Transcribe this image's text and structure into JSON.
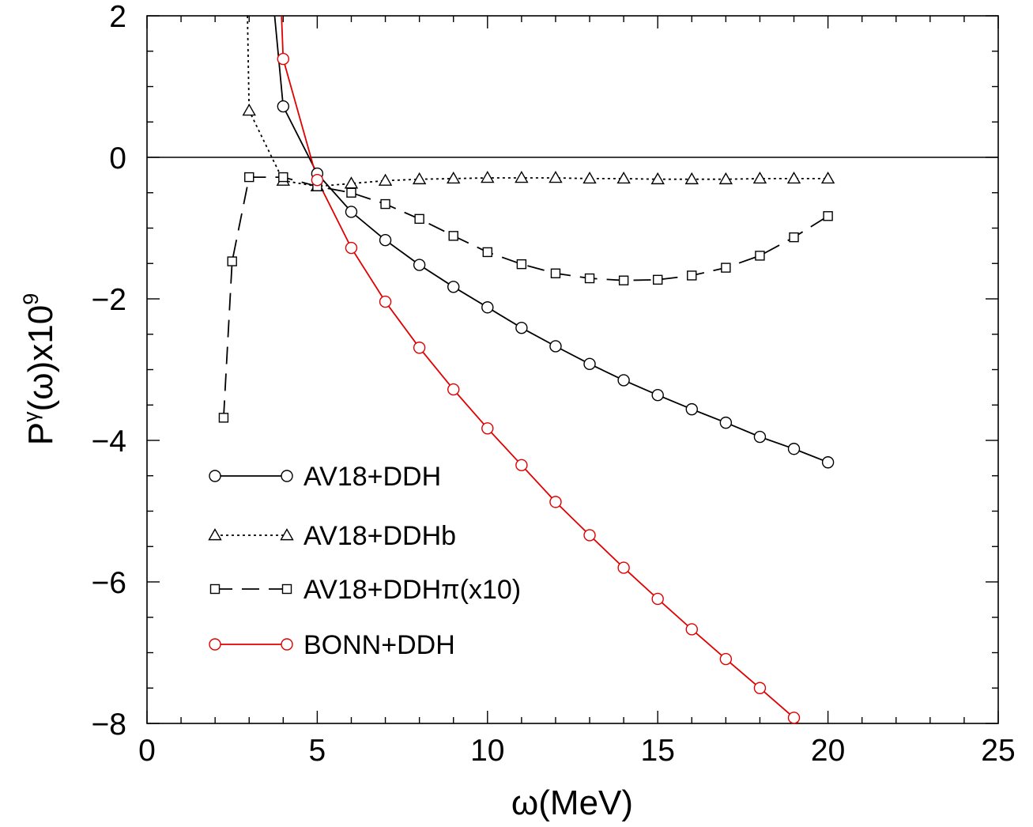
{
  "chart_data": {
    "type": "line",
    "xlabel": "ω(MeV)",
    "ylabel": {
      "base": "P",
      "sup": "γ",
      "rest": "(ω)x10",
      "exp": "9"
    },
    "xlim": [
      0,
      25
    ],
    "ylim": [
      -8,
      2
    ],
    "xticks": [
      0,
      5,
      10,
      15,
      20,
      25
    ],
    "yticks": [
      -8,
      -6,
      -4,
      -2,
      0,
      2
    ],
    "xtick_labels": [
      "0",
      "5",
      "10",
      "15",
      "20",
      "25"
    ],
    "ytick_labels": [
      "−8",
      "−6",
      "−4",
      "−2",
      "0",
      "2"
    ],
    "zero_line": true,
    "grid": false,
    "legend_placement": "lower-left",
    "series": [
      {
        "name": "AV18+DDH",
        "color": "#000000",
        "dash": "solid",
        "marker": "circle",
        "curve_x": [
          3.75,
          4,
          5,
          6,
          7,
          8,
          9,
          10,
          11,
          12,
          13,
          14,
          15,
          16,
          17,
          18,
          19,
          20
        ],
        "curve_y": [
          2.0,
          0.72,
          -0.23,
          -0.77,
          -1.17,
          -1.52,
          -1.83,
          -2.12,
          -2.41,
          -2.67,
          -2.92,
          -3.15,
          -3.36,
          -3.56,
          -3.75,
          -3.95,
          -4.12,
          -4.31
        ],
        "x": [
          4,
          5,
          6,
          7,
          8,
          9,
          10,
          11,
          12,
          13,
          14,
          15,
          16,
          17,
          18,
          19,
          20
        ],
        "y": [
          0.72,
          -0.23,
          -0.77,
          -1.17,
          -1.52,
          -1.83,
          -2.12,
          -2.41,
          -2.67,
          -2.92,
          -3.15,
          -3.36,
          -3.56,
          -3.75,
          -3.95,
          -4.12,
          -4.31
        ]
      },
      {
        "name": "AV18+DDHb",
        "color": "#000000",
        "dash": "dotted",
        "marker": "triangle",
        "curve_x": [
          2.95,
          3,
          4,
          5,
          6,
          7,
          8,
          9,
          10,
          11,
          12,
          13,
          14,
          15,
          16,
          17,
          18,
          19,
          20
        ],
        "curve_y": [
          2.0,
          0.66,
          -0.33,
          -0.41,
          -0.37,
          -0.33,
          -0.31,
          -0.3,
          -0.29,
          -0.29,
          -0.29,
          -0.3,
          -0.3,
          -0.31,
          -0.31,
          -0.31,
          -0.3,
          -0.3,
          -0.3
        ],
        "x": [
          3,
          4,
          5,
          6,
          7,
          8,
          9,
          10,
          11,
          12,
          13,
          14,
          15,
          16,
          17,
          18,
          19,
          20
        ],
        "y": [
          0.66,
          -0.33,
          -0.41,
          -0.37,
          -0.33,
          -0.31,
          -0.3,
          -0.29,
          -0.29,
          -0.29,
          -0.3,
          -0.3,
          -0.31,
          -0.31,
          -0.31,
          -0.3,
          -0.3,
          -0.3
        ]
      },
      {
        "name": "AV18+DDHπ(x10)",
        "color": "#000000",
        "dash": "dashed",
        "marker": "square",
        "curve_x": [
          2.25,
          2.5,
          3,
          4,
          5,
          6,
          7,
          8,
          9,
          10,
          11,
          12,
          13,
          14,
          15,
          16,
          17,
          18,
          19,
          20
        ],
        "curve_y": [
          -3.68,
          -1.47,
          -0.28,
          -0.28,
          -0.41,
          -0.5,
          -0.66,
          -0.87,
          -1.11,
          -1.34,
          -1.51,
          -1.64,
          -1.71,
          -1.74,
          -1.73,
          -1.67,
          -1.56,
          -1.39,
          -1.13,
          -0.83
        ],
        "x": [
          2.25,
          2.5,
          3,
          4,
          5,
          6,
          7,
          8,
          9,
          10,
          11,
          12,
          13,
          14,
          15,
          16,
          17,
          18,
          19,
          20
        ],
        "y": [
          -3.68,
          -1.47,
          -0.28,
          -0.28,
          -0.41,
          -0.5,
          -0.66,
          -0.87,
          -1.11,
          -1.34,
          -1.51,
          -1.64,
          -1.71,
          -1.74,
          -1.73,
          -1.67,
          -1.56,
          -1.39,
          -1.13,
          -0.83
        ]
      },
      {
        "name": "BONN+DDH",
        "color": "#e00000",
        "dash": "solid",
        "marker": "circle",
        "curve_x": [
          3.95,
          4,
          5,
          6,
          7,
          8,
          9,
          10,
          11,
          12,
          13,
          14,
          15,
          16,
          17,
          18,
          19,
          19.13
        ],
        "curve_y": [
          2.0,
          1.39,
          -0.32,
          -1.28,
          -2.04,
          -2.69,
          -3.28,
          -3.83,
          -4.35,
          -4.87,
          -5.34,
          -5.8,
          -6.24,
          -6.67,
          -7.09,
          -7.5,
          -7.92,
          -8.0
        ],
        "x": [
          4,
          5,
          6,
          7,
          8,
          9,
          10,
          11,
          12,
          13,
          14,
          15,
          16,
          17,
          18,
          19
        ],
        "y": [
          1.39,
          -0.32,
          -1.28,
          -2.04,
          -2.69,
          -3.28,
          -3.83,
          -4.35,
          -4.87,
          -5.34,
          -5.8,
          -6.24,
          -6.67,
          -7.09,
          -7.5,
          -7.92
        ]
      }
    ]
  }
}
